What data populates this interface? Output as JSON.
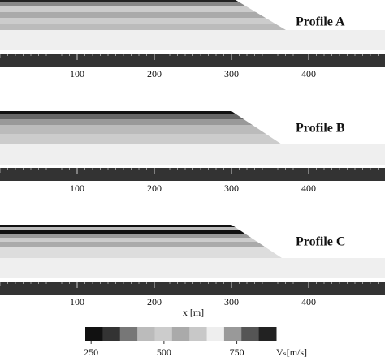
{
  "profiles": [
    {
      "label": "Profile A"
    },
    {
      "label": "Profile B"
    },
    {
      "label": "Profile C"
    }
  ],
  "x_axis": {
    "ticks": [
      100,
      200,
      300,
      400
    ],
    "label": "x [m]"
  },
  "colorbar": {
    "ticks": [
      250,
      500,
      750
    ],
    "label": "Vₛ[m/s]",
    "range": [
      230,
      885
    ],
    "colors": [
      "#111111",
      "#333333",
      "#777777",
      "#bbbbbb",
      "#cccccc",
      "#aaaaaa",
      "#c8c8c8",
      "#eeeeee",
      "#999999",
      "#555555",
      "#222222"
    ]
  }
}
